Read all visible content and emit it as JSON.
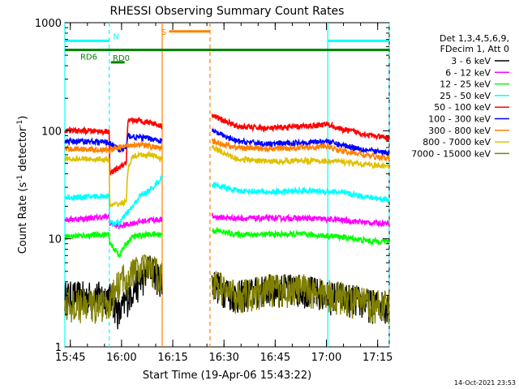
{
  "chart_data": {
    "type": "line",
    "title": "RHESSI Observing Summary Count Rates",
    "xlabel": "Start Time (19-Apr-06 15:43:22)",
    "ylabel_main": "Count Rate (s",
    "ylabel_sup1": "-1",
    "ylabel_mid": " detector",
    "ylabel_sup2": "-1",
    "ylabel_end": ")",
    "y_scale": "log",
    "ylim": [
      1,
      1000
    ],
    "xlim_minutes": [
      0,
      95
    ],
    "x_ticks": [
      {
        "label": "15:45",
        "minutes": 1.6
      },
      {
        "label": "16:00",
        "minutes": 16.6
      },
      {
        "label": "16:15",
        "minutes": 31.6
      },
      {
        "label": "16:30",
        "minutes": 46.6
      },
      {
        "label": "16:45",
        "minutes": 61.6
      },
      {
        "label": "17:00",
        "minutes": 76.6
      },
      {
        "label": "17:15",
        "minutes": 91.6
      }
    ],
    "y_ticks": [
      {
        "label": "1",
        "value": 1
      },
      {
        "label": "10",
        "value": 10
      },
      {
        "label": "100",
        "value": 100
      },
      {
        "label": "1000",
        "value": 1000
      }
    ],
    "legend": {
      "header1": "Det 1,3,4,5,6,9,",
      "header2": "FDecim 1, Att 0",
      "placement": "right"
    },
    "series": [
      {
        "name": "3 - 6 keV",
        "color": "#000000",
        "x": [
          0,
          13,
          13.1,
          16,
          20,
          22,
          25,
          28.5,
          42.5,
          43,
          50,
          60,
          70,
          77,
          80,
          90,
          95
        ],
        "y": [
          3,
          3,
          3,
          2,
          3.5,
          4,
          5.5,
          4,
          null,
          4,
          3,
          3.5,
          3.5,
          3,
          3,
          2.5,
          2.5
        ]
      },
      {
        "name": "6 - 12 keV",
        "color": "#ff00ff",
        "x": [
          0,
          13,
          13.1,
          16,
          20,
          25,
          28.5,
          42.5,
          43,
          50,
          60,
          70,
          80,
          90,
          95
        ],
        "y": [
          15,
          16,
          14,
          13,
          14,
          15,
          15,
          null,
          16,
          15.5,
          15.5,
          15.5,
          15,
          14,
          14
        ]
      },
      {
        "name": "12 - 25 keV",
        "color": "#00ff00",
        "x": [
          0,
          13,
          13.1,
          16,
          18,
          20,
          25,
          28.5,
          42.5,
          43,
          50,
          60,
          70,
          80,
          90,
          95
        ],
        "y": [
          10.5,
          11,
          9,
          7,
          9,
          10.5,
          11,
          11,
          null,
          12,
          11,
          11,
          11,
          10.5,
          9.5,
          9.5
        ]
      },
      {
        "name": "25 - 50 keV",
        "color": "#00ffff",
        "x": [
          0,
          13,
          13.1,
          16,
          20,
          22,
          25,
          28.5,
          42.5,
          43,
          50,
          60,
          70,
          80,
          90,
          95
        ],
        "y": [
          24,
          25,
          14,
          14,
          20,
          25,
          28,
          37,
          null,
          32,
          28,
          27,
          28,
          27,
          24,
          23
        ]
      },
      {
        "name": "50 - 100 keV",
        "color": "#ff0000",
        "x": [
          0,
          5,
          13,
          13.1,
          18,
          18.5,
          20,
          25,
          28.5,
          42.5,
          43,
          50,
          60,
          70,
          77,
          80,
          90,
          95
        ],
        "y": [
          100,
          100,
          98,
          40,
          50,
          120,
          125,
          120,
          110,
          null,
          140,
          110,
          105,
          110,
          115,
          105,
          90,
          85
        ]
      },
      {
        "name": "100 - 300 keV",
        "color": "#0000ff",
        "x": [
          0,
          5,
          13,
          16,
          18,
          18.5,
          20,
          25,
          28.5,
          42.5,
          43,
          50,
          60,
          70,
          77,
          80,
          90,
          95
        ],
        "y": [
          80,
          80,
          78,
          65,
          70,
          90,
          88,
          85,
          80,
          null,
          100,
          80,
          75,
          78,
          80,
          75,
          65,
          62
        ]
      },
      {
        "name": "300 - 800 keV",
        "color": "#ff8000",
        "x": [
          0,
          5,
          13,
          16,
          20,
          25,
          28.5,
          42.5,
          43,
          50,
          60,
          70,
          77,
          80,
          90,
          95
        ],
        "y": [
          68,
          68,
          66,
          70,
          75,
          72,
          68,
          null,
          80,
          70,
          68,
          70,
          72,
          66,
          58,
          55
        ]
      },
      {
        "name": "800 - 7000 keV",
        "color": "#e0c000",
        "x": [
          0,
          5,
          13,
          13.1,
          18,
          18.5,
          20,
          25,
          28.5,
          42.5,
          43,
          50,
          60,
          70,
          80,
          90,
          95
        ],
        "y": [
          55,
          55,
          54,
          20,
          22,
          45,
          58,
          60,
          55,
          null,
          70,
          55,
          52,
          53,
          52,
          48,
          47
        ]
      },
      {
        "name": "7000 - 15000 keV",
        "color": "#808000",
        "x": [
          0,
          13,
          13.1,
          16,
          18,
          20,
          25,
          28.5,
          42.5,
          43,
          50,
          60,
          70,
          80,
          90,
          95
        ],
        "y": [
          2.5,
          2.5,
          2.5,
          4,
          4.5,
          5,
          5.5,
          4.5,
          null,
          4,
          3,
          3.5,
          3.5,
          3,
          2.5,
          2.5
        ]
      }
    ],
    "vertical_markers": [
      {
        "minutes": 0,
        "color": "#00ffff",
        "style": "solid"
      },
      {
        "minutes": 13,
        "color": "#00ffff",
        "style": "dashed"
      },
      {
        "minutes": 28.5,
        "color": "#ff8000",
        "style": "solid"
      },
      {
        "minutes": 42.5,
        "color": "#ff8000",
        "style": "dashed"
      },
      {
        "minutes": 77,
        "color": "#00ffff",
        "style": "solid"
      },
      {
        "minutes": 95,
        "color": "#00ffff",
        "style": "dashed"
      }
    ],
    "top_bars": [
      {
        "label": "N",
        "color": "#00ffff",
        "from": 0,
        "to": 13,
        "at_value": 680,
        "label_at": 15
      },
      {
        "label": "N",
        "color": "#00ffff",
        "from": 77,
        "to": 95,
        "at_value": 680,
        "label_at": null
      },
      {
        "label": "S",
        "color": "#ff8000",
        "from": 30.5,
        "to": 42.5,
        "at_value": 830,
        "label_at": 29
      },
      {
        "label": "RD6",
        "color": "#008000",
        "from": 0,
        "to": 95,
        "at_value": 560,
        "label_at": 7
      },
      {
        "label": "RD0",
        "color": "#008000",
        "from": 13.5,
        "to": 17.5,
        "at_value": 430,
        "label_at": 16.5
      }
    ]
  },
  "footer_timestamp": "14-Oct-2021 23:53"
}
